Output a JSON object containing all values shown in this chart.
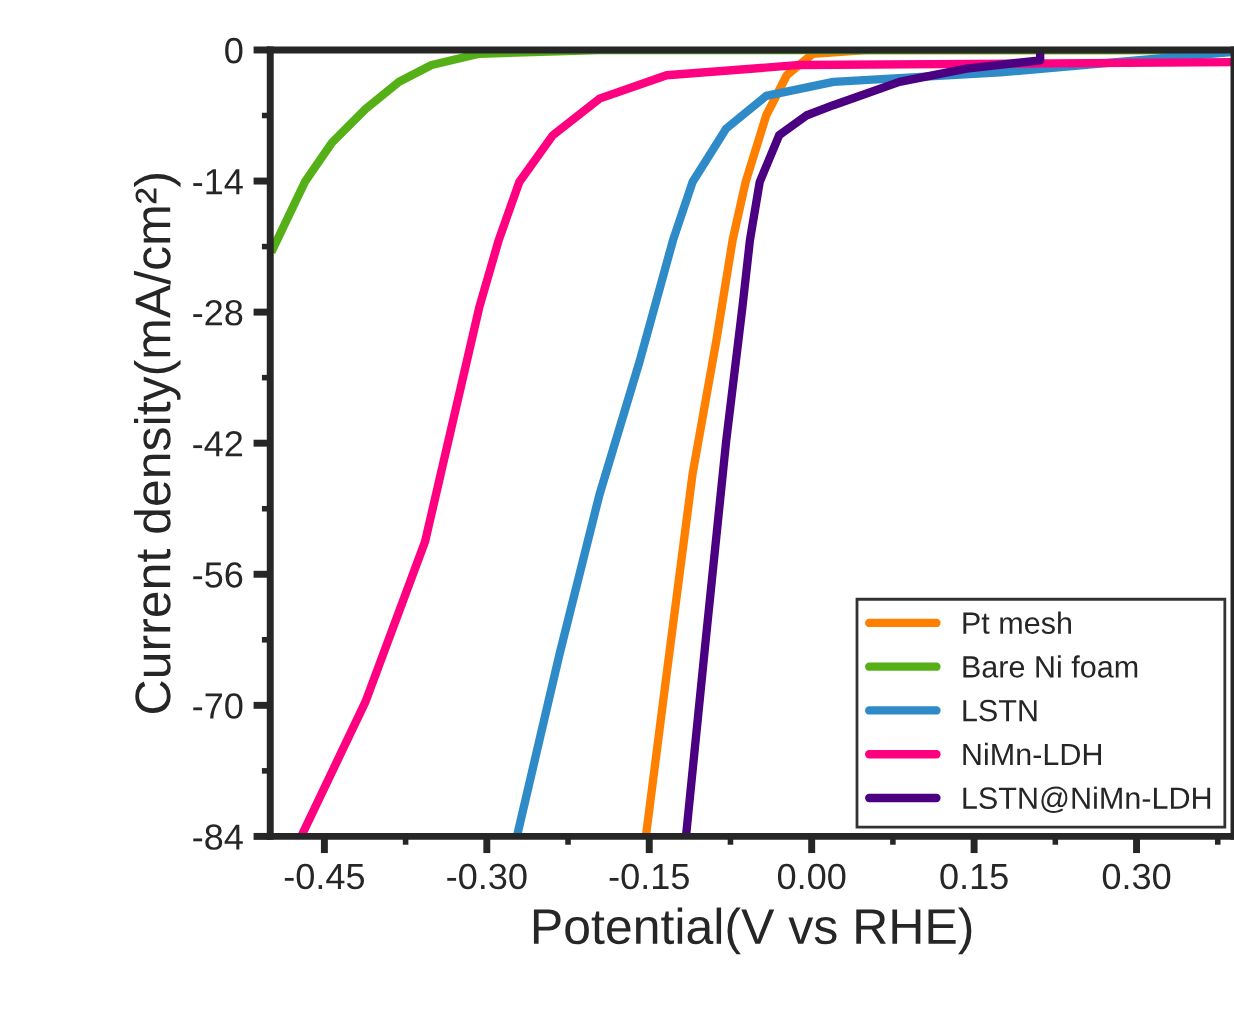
{
  "chart_data": {
    "type": "line",
    "xlabel": "Potential(V vs RHE)",
    "ylabel": "Current density(mA/cm²)",
    "xlim": [
      -0.5,
      0.39
    ],
    "xticks": [
      {
        "value": -0.45,
        "label": "-0.45"
      },
      {
        "value": -0.3,
        "label": "-0.30"
      },
      {
        "value": -0.15,
        "label": "-0.15"
      },
      {
        "value": 0,
        "label": "0.00"
      },
      {
        "value": 0.15,
        "label": "0.15"
      },
      {
        "value": 0.3,
        "label": "0.30"
      }
    ],
    "ylim": [
      -84,
      0
    ],
    "yticks": [
      0,
      -14,
      -28,
      -42,
      -56,
      -70,
      -84
    ],
    "grid": false,
    "legend": "bottom right",
    "line_style": "solid",
    "marker": "none",
    "series": [
      {
        "name": "Pt mesh",
        "color": "#ff8000",
        "x": [
          -0.153,
          -0.134,
          -0.11,
          -0.088,
          -0.073,
          -0.061,
          -0.042,
          -0.023,
          0.001,
          0.05,
          0.39
        ],
        "values": [
          -83.9,
          -66.7,
          -45.3,
          -31.0,
          -20.3,
          -14.1,
          -7.0,
          -2.7,
          -0.4,
          0,
          0
        ]
      },
      {
        "name": "Bare Ni foam",
        "color": "#55b018",
        "x": [
          -0.499,
          -0.468,
          -0.443,
          -0.412,
          -0.381,
          -0.351,
          -0.307,
          -0.196,
          0.39
        ],
        "values": [
          -21.6,
          -14.1,
          -9.9,
          -6.3,
          -3.4,
          -1.6,
          -0.4,
          0,
          0
        ]
      },
      {
        "name": "LSTN",
        "color": "#2e8bc8",
        "x": [
          -0.272,
          -0.233,
          -0.196,
          -0.159,
          -0.128,
          -0.11,
          -0.079,
          -0.042,
          0.02,
          0.174,
          0.39
        ],
        "values": [
          -83.9,
          -64.6,
          -47.5,
          -33.3,
          -20.3,
          -14.1,
          -8.4,
          -4.9,
          -3.4,
          -2.4,
          -0.2
        ]
      },
      {
        "name": "NiMn-LDH",
        "color": "#ff0080",
        "x": [
          -0.471,
          -0.412,
          -0.357,
          -0.307,
          -0.289,
          -0.27,
          -0.239,
          -0.196,
          -0.134,
          -0.011,
          0.39
        ],
        "values": [
          -83.9,
          -69.6,
          -52.5,
          -27.5,
          -20.3,
          -14.1,
          -9.1,
          -5.2,
          -2.7,
          -1.6,
          -1.3
        ]
      },
      {
        "name": "LSTN@NiMn-LDH",
        "color": "#4b0082",
        "x": [
          -0.116,
          -0.098,
          -0.079,
          -0.064,
          -0.057,
          -0.048,
          -0.03,
          -0.005,
          0.02,
          0.081,
          0.143,
          0.211,
          0.211
        ],
        "values": [
          -83.9,
          -63.2,
          -41.8,
          -27.5,
          -20.3,
          -14.1,
          -9.1,
          -7.0,
          -5.9,
          -3.4,
          -2.0,
          -1.1,
          0
        ]
      }
    ]
  }
}
